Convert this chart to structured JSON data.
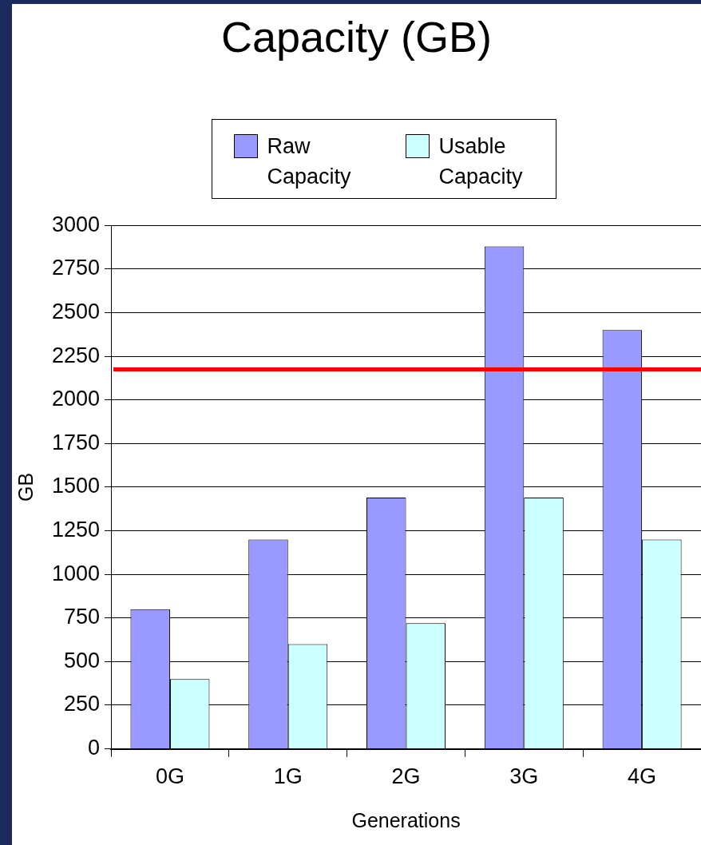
{
  "chart_data": {
    "type": "bar",
    "title": "Capacity (GB)",
    "xlabel": "Generations",
    "ylabel": "GB",
    "categories": [
      "0G",
      "1G",
      "2G",
      "3G",
      "4G"
    ],
    "series": [
      {
        "name": "Raw Capacity",
        "color": "#9999ff",
        "values": [
          800,
          1200,
          1440,
          2880,
          2400
        ]
      },
      {
        "name": "Usable Capacity",
        "color": "#ccffff",
        "values": [
          400,
          600,
          720,
          1440,
          1200
        ]
      }
    ],
    "ylim": [
      0,
      3000
    ],
    "yticks": [
      0,
      250,
      500,
      750,
      1000,
      1250,
      1500,
      1750,
      2000,
      2250,
      2500,
      2750,
      3000
    ],
    "grid": "y",
    "legend": "top",
    "ref_lines": [
      {
        "axis": "y",
        "value": 2175,
        "color": "#ff0000"
      }
    ]
  }
}
